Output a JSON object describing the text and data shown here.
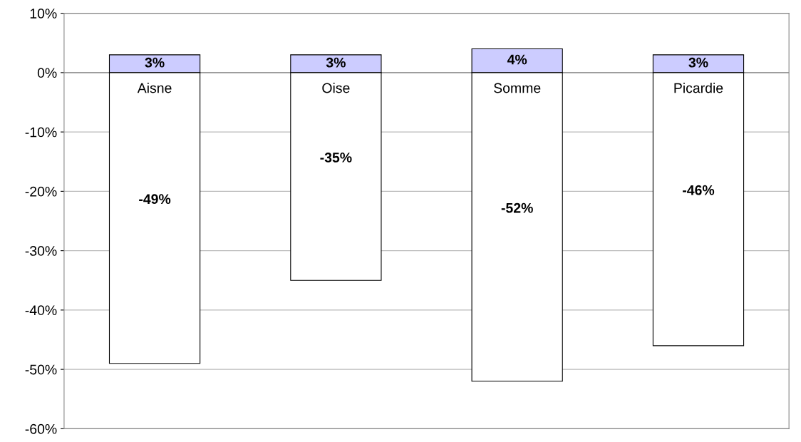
{
  "chart_data": {
    "type": "bar",
    "stacked": true,
    "categories": [
      "Aisne",
      "Oise",
      "Somme",
      "Picardie"
    ],
    "series": [
      {
        "color": "#ccccff",
        "values": [
          3,
          3,
          4,
          3
        ],
        "value_labels": [
          "3%",
          "3%",
          "4%",
          "3%"
        ]
      },
      {
        "color": "#ffffff",
        "values": [
          -49,
          -35,
          -52,
          -46
        ],
        "value_labels": [
          "-49%",
          "-35%",
          "-52%",
          "-46%"
        ]
      }
    ],
    "ylim": [
      -60,
      10
    ],
    "yticks": [
      {
        "value": 10,
        "label": "10%"
      },
      {
        "value": 0,
        "label": "0%"
      },
      {
        "value": -10,
        "label": "-10%"
      },
      {
        "value": -20,
        "label": "-20%"
      },
      {
        "value": -30,
        "label": "-30%"
      },
      {
        "value": -40,
        "label": "-40%"
      },
      {
        "value": -50,
        "label": "-50%"
      },
      {
        "value": -60,
        "label": "-60%"
      }
    ],
    "grid": "y"
  }
}
